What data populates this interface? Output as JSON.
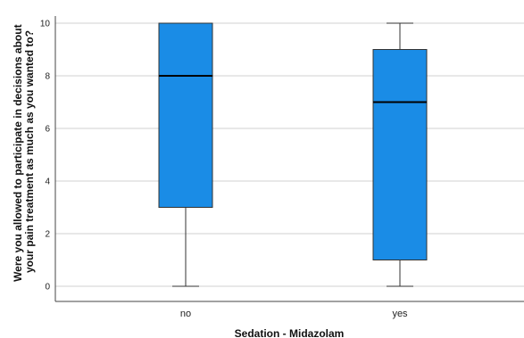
{
  "chart_data": {
    "type": "box",
    "categories": [
      "no",
      "yes"
    ],
    "boxes": [
      {
        "category": "no",
        "min": 0,
        "q1": 3,
        "median": 8,
        "q3": 10,
        "max": 10
      },
      {
        "category": "yes",
        "min": 0,
        "q1": 1,
        "median": 7,
        "q3": 9,
        "max": 10
      }
    ],
    "xlabel": "Sedation - Midazolam",
    "ylabel_lines": [
      "Were you allowed to participate in decisions about",
      "your pain treatment as much as you wanted to?"
    ],
    "yticks": [
      0,
      2,
      4,
      6,
      8,
      10
    ],
    "ylim": [
      -0.5,
      10.3
    ],
    "grid": true,
    "colors": {
      "box_fill": "#1a8ce6",
      "box_stroke": "#333333",
      "grid": "#d0d0d0",
      "axis": "#444444"
    }
  }
}
